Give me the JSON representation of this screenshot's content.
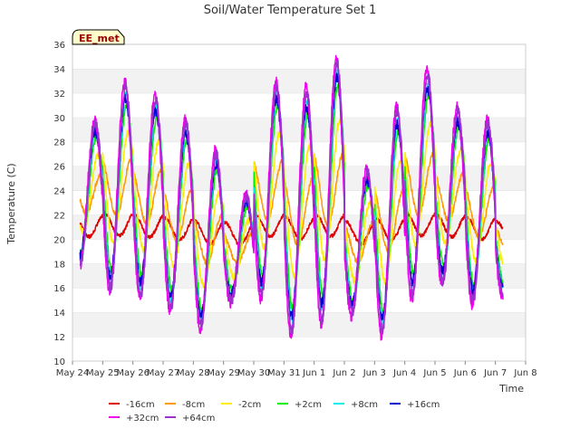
{
  "chart_data": {
    "type": "line",
    "title": "Soil/Water Temperature Set 1",
    "station_label": "EE_met",
    "xlabel": "Time",
    "ylabel": "Temperature (C)",
    "ylim": [
      10,
      36
    ],
    "yticks": [
      10,
      12,
      14,
      16,
      18,
      20,
      22,
      24,
      26,
      28,
      30,
      32,
      34,
      36
    ],
    "xlim": [
      0,
      15
    ],
    "xticks": [
      {
        "x": 0,
        "label": "May 24"
      },
      {
        "x": 1,
        "label": "May 25"
      },
      {
        "x": 2,
        "label": "May 26"
      },
      {
        "x": 3,
        "label": "May 27"
      },
      {
        "x": 4,
        "label": "May 28"
      },
      {
        "x": 5,
        "label": "May 29"
      },
      {
        "x": 6,
        "label": "May 30"
      },
      {
        "x": 7,
        "label": "May 31"
      },
      {
        "x": 8,
        "label": "Jun 1"
      },
      {
        "x": 9,
        "label": "Jun 2"
      },
      {
        "x": 10,
        "label": "Jun 3"
      },
      {
        "x": 11,
        "label": "Jun 4"
      },
      {
        "x": 12,
        "label": "Jun 5"
      },
      {
        "x": 13,
        "label": "Jun 6"
      },
      {
        "x": 14,
        "label": "Jun 7"
      },
      {
        "x": 15,
        "label": "Jun 8"
      }
    ],
    "grid": "horizontal bands",
    "legend_position": "bottom",
    "days": [
      {
        "x": 0.0,
        "ymin": 18.0,
        "ymax": 29.5
      },
      {
        "x": 1.0,
        "ymin": 16.0,
        "ymax": 32.5
      },
      {
        "x": 2.0,
        "ymin": 15.5,
        "ymax": 31.5
      },
      {
        "x": 3.0,
        "ymin": 14.5,
        "ymax": 29.5
      },
      {
        "x": 4.0,
        "ymin": 13.0,
        "ymax": 27.0
      },
      {
        "x": 5.0,
        "ymin": 15.0,
        "ymax": 23.5
      },
      {
        "x": 6.0,
        "ymin": 15.5,
        "ymax": 32.5
      },
      {
        "x": 7.0,
        "ymin": 12.5,
        "ymax": 32.0
      },
      {
        "x": 8.0,
        "ymin": 13.5,
        "ymax": 34.5
      },
      {
        "x": 9.0,
        "ymin": 14.0,
        "ymax": 25.5
      },
      {
        "x": 10.0,
        "ymin": 12.5,
        "ymax": 30.5
      },
      {
        "x": 11.0,
        "ymin": 15.5,
        "ymax": 33.5
      },
      {
        "x": 12.0,
        "ymin": 16.5,
        "ymax": 30.5
      },
      {
        "x": 13.0,
        "ymin": 15.0,
        "ymax": 29.5
      },
      {
        "x": 14.0,
        "ymin": 15.5,
        "ymax": 24.0
      }
    ],
    "series": [
      {
        "name": "-16cm",
        "color": "#dd0000",
        "amp": 0.09,
        "lag": 0.3,
        "noise": 0.15
      },
      {
        "name": "-8cm",
        "color": "#ff9900",
        "amp": 0.28,
        "lag": 0.2,
        "noise": 0.2
      },
      {
        "name": "-2cm",
        "color": "#ffee00",
        "amp": 0.55,
        "lag": 0.1,
        "noise": 0.3
      },
      {
        "name": "+2cm",
        "color": "#00ee00",
        "amp": 0.82,
        "lag": 0.04,
        "noise": 0.35
      },
      {
        "name": "+8cm",
        "color": "#00eeee",
        "amp": 0.92,
        "lag": 0.02,
        "noise": 0.4
      },
      {
        "name": "+16cm",
        "color": "#0000cc",
        "amp": 0.88,
        "lag": 0.0,
        "noise": 0.4
      },
      {
        "name": "+32cm",
        "color": "#ee00ee",
        "amp": 1.05,
        "lag": -0.02,
        "noise": 0.45
      },
      {
        "name": "+64cm",
        "color": "#9933cc",
        "amp": 1.0,
        "lag": 0.01,
        "noise": 0.45
      }
    ]
  }
}
